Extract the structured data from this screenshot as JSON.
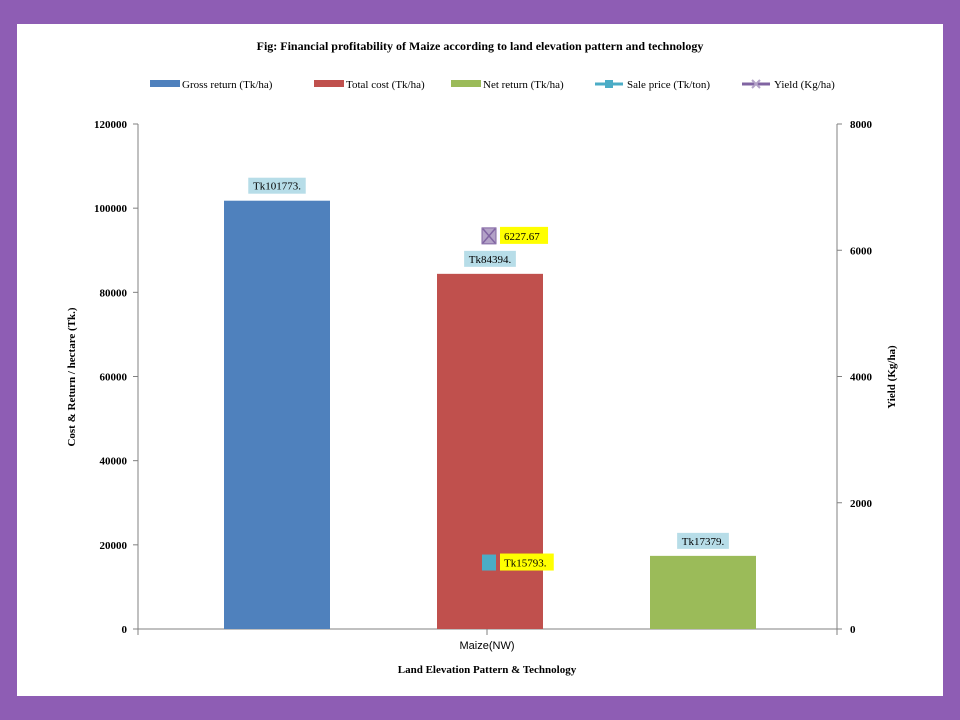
{
  "chart_data": {
    "type": "bar",
    "title": "Fig: Financial profitability of Maize according to land elevation pattern and technology",
    "xlabel": "Land Elevation Pattern & Technology",
    "ylabel": "Cost & Return / hectare (Tk.)",
    "y2label": "Yield (Kg/ha)",
    "categories": [
      "Maize(NW)"
    ],
    "ylim": [
      0,
      120000
    ],
    "y2lim": [
      0,
      8000
    ],
    "yticks": [
      "0",
      "20000",
      "40000",
      "60000",
      "80000",
      "100000",
      "120000"
    ],
    "y2ticks": [
      "0",
      "2000",
      "4000",
      "6000",
      "8000"
    ],
    "legend_position": "top",
    "grid": false,
    "series": [
      {
        "name": "Gross return (Tk/ha)",
        "kind": "bar",
        "axis": "left",
        "value": 101773,
        "label": "Tk101773.",
        "color": "#4f81bd",
        "label_bg": "#b7dde8"
      },
      {
        "name": "Total cost (Tk/ha)",
        "kind": "bar",
        "axis": "left",
        "value": 84394,
        "label": "Tk84394.",
        "color": "#c0504d",
        "label_bg": "#b7dde8"
      },
      {
        "name": "Net return (Tk/ha)",
        "kind": "bar",
        "axis": "left",
        "value": 17379,
        "label": "Tk17379.",
        "color": "#9bbb59",
        "label_bg": "#b7dde8"
      },
      {
        "name": "Sale price (Tk/ton)",
        "kind": "marker",
        "axis": "left",
        "value": 15793,
        "label": "Tk15793.",
        "color": "#4bacc6",
        "marker": "square",
        "label_bg": "#ffff00"
      },
      {
        "name": "Yield (Kg/ha)",
        "kind": "marker",
        "axis": "right",
        "value": 6227.67,
        "label": "6227.67",
        "color": "#8064a2",
        "marker": "x",
        "label_bg": "#ffff00"
      }
    ]
  }
}
